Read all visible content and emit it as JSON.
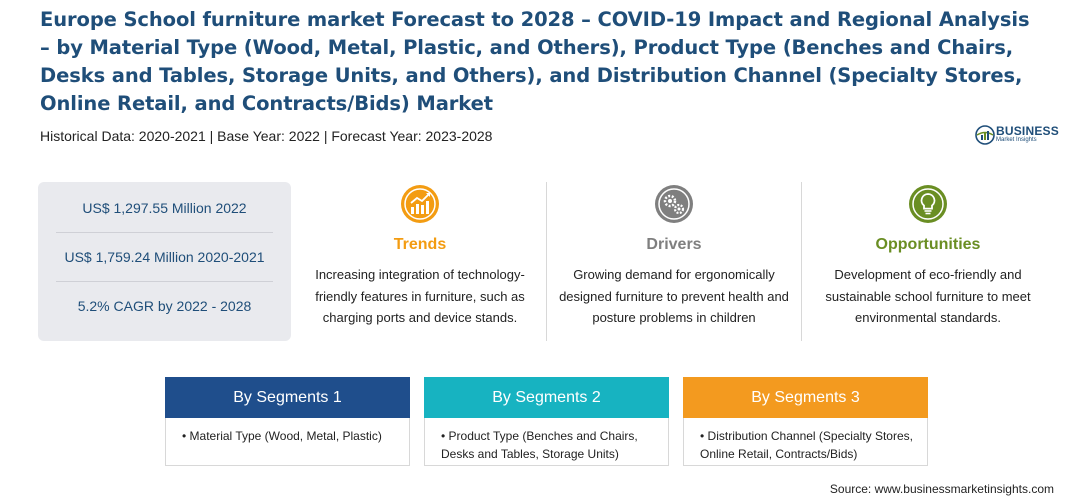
{
  "title": "Europe School furniture market Forecast to 2028 – COVID-19 Impact and Regional Analysis – by Material Type (Wood, Metal, Plastic, and Others), Product Type (Benches and Chairs, Desks and Tables, Storage Units, and Others), and Distribution Channel (Specialty Stores, Online Retail, and Contracts/Bids)  Market",
  "subtitle": "Historical Data: 2020-2021 | Base Year: 2022 | Forecast Year: 2023-2028",
  "logo": {
    "name": "BUSINESS",
    "sub": "Market Insights",
    "icon": "globe-chart-icon",
    "color": "#1f4e79"
  },
  "stats": [
    "US$ 1,297.55 Million 2022",
    "US$ 1,759.24 Million 2020-2021",
    "5.2% CAGR by 2022 - 2028"
  ],
  "columns": [
    {
      "heading": "Trends",
      "icon": "trend-chart-icon",
      "color": "#f39c12",
      "text": "Increasing integration of technology-friendly features in furniture, such as charging ports and device stands."
    },
    {
      "heading": "Drivers",
      "icon": "gears-icon",
      "color": "#7f7f7f",
      "text": "Growing demand for ergonomically designed furniture to prevent health and posture problems in children"
    },
    {
      "heading": "Opportunities",
      "icon": "lightbulb-icon",
      "color": "#6a8e23",
      "text": "Development of eco-friendly and sustainable school furniture to meet environmental standards."
    }
  ],
  "segments": [
    {
      "title": "By Segments 1",
      "color": "#1f4e8c",
      "text": "• Material Type (Wood, Metal, Plastic)"
    },
    {
      "title": "By Segments 2",
      "color": "#17b3c1",
      "text": "• Product Type (Benches and Chairs, Desks and Tables, Storage Units)"
    },
    {
      "title": "By Segments 3",
      "color": "#f39a1f",
      "text": "• Distribution Channel (Specialty Stores, Online Retail, Contracts/Bids)"
    }
  ],
  "source": "Source: www.businessmarketinsights.com"
}
